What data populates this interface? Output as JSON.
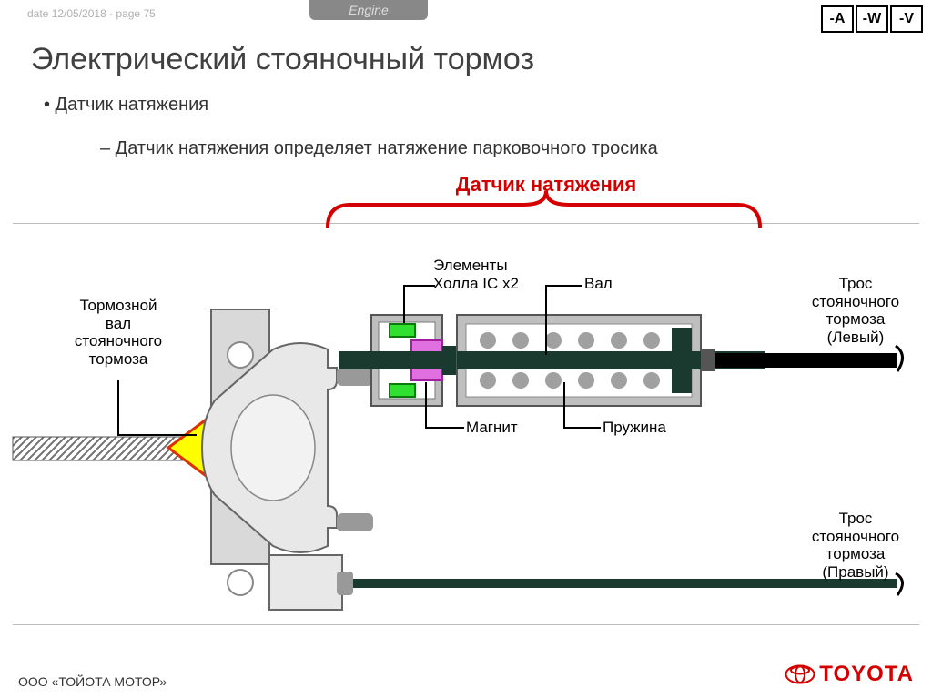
{
  "header": {
    "date_page": "date 12/05/2018 - page 75",
    "badge": "Engine",
    "btn_a": "-A",
    "btn_w": "-W",
    "btn_v": "-V"
  },
  "title": "Электрический стояночный тормоз",
  "bullet1": "• Датчик натяжения",
  "bullet2": "– Датчик натяжения определяет натяжение парковочного тросика",
  "brace_title": "Датчик натяжения",
  "labels": {
    "brake_shaft": "Тормозной\nвал\nстояночного\nтормоза",
    "hall": "Элементы\nХолла IC x2",
    "shaft": "Вал",
    "magnet": "Магнит",
    "spring": "Пружина",
    "cable_left": "Трос\nстояночного\nтормоза\n(Левый)",
    "cable_right": "Трос\nстояночного\nтормоза\n(Правый)"
  },
  "footer": "ООО «ТОЙОТА МОТОР»",
  "logo_text": "TOYOTA",
  "colors": {
    "brace": "#d40000",
    "arrow_fill": "#ffff00",
    "arrow_stroke": "#e03000",
    "hall": "#30e030",
    "magnet": "#e070e0",
    "shaft_dark": "#1a3a30",
    "sensor_body": "#bfbfbf",
    "coil": "#a0a0a0",
    "bracket": "#d9d9d9",
    "joint": "#e8e8e8",
    "hatch": "#707070"
  }
}
